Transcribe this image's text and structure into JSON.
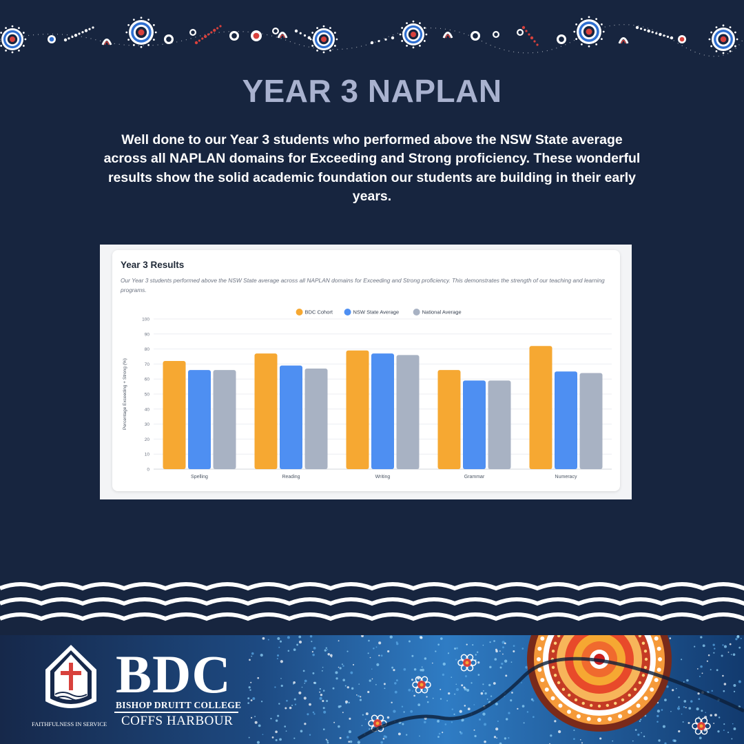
{
  "page": {
    "title": "YEAR 3 NAPLAN",
    "intro": "Well done to our Year 3 students who performed above the NSW State average across all NAPLAN domains for Exceeding and Strong proficiency. These wonderful results show the solid academic foundation our students are building in their early years."
  },
  "card": {
    "title": "Year 3 Results",
    "description": "Our Year 3 students performed above the NSW State average across all NAPLAN domains for Exceeding and Strong proficiency. This demonstrates the strength of our teaching and learning programs."
  },
  "chart_data": {
    "type": "bar",
    "categories": [
      "Spelling",
      "Reading",
      "Writing",
      "Grammar",
      "Numeracy"
    ],
    "series": [
      {
        "name": "BDC Cohort",
        "color": "#f6a832",
        "values": [
          72,
          77,
          79,
          66,
          82
        ]
      },
      {
        "name": "NSW State Average",
        "color": "#4e8ff2",
        "values": [
          66,
          69,
          77,
          59,
          65
        ]
      },
      {
        "name": "National Average",
        "color": "#a8b2c3",
        "values": [
          66,
          67,
          76,
          59,
          64
        ]
      }
    ],
    "ylabel": "Percentage Exceeding + Strong (%)",
    "ylim": [
      0,
      100
    ],
    "yticks": [
      0,
      10,
      20,
      30,
      40,
      50,
      60,
      70,
      80,
      90,
      100
    ],
    "grid": true,
    "legend": "top-center"
  },
  "footer": {
    "brand": "BDC",
    "school_name": "BISHOP DRUITT COLLEGE",
    "campus": "COFFS HARBOUR",
    "motto": "FAITHFULNESS IN SERVICE"
  },
  "colors": {
    "background": "#17253f",
    "title": "#a9b2cf",
    "accent_red": "#d8413c"
  }
}
